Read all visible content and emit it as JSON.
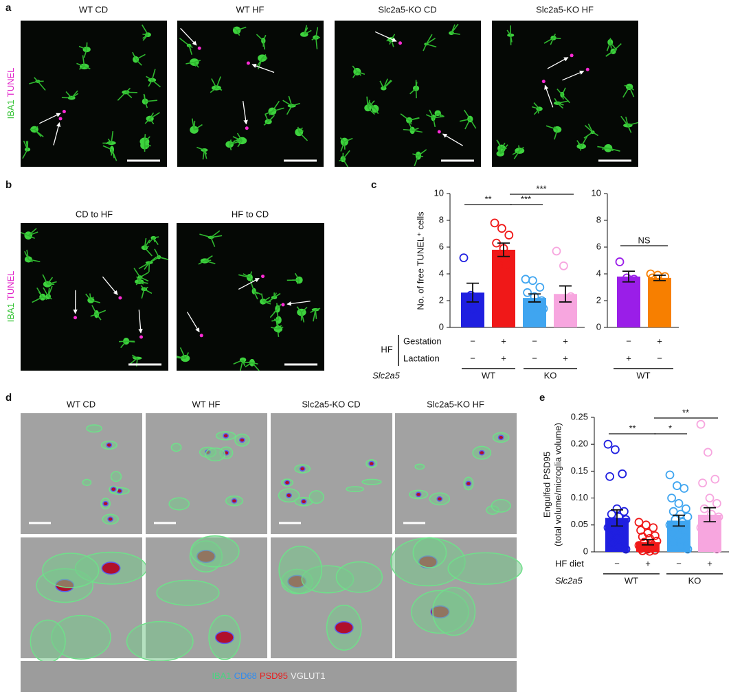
{
  "panel_labels": [
    "a",
    "b",
    "c",
    "d",
    "e"
  ],
  "panel_a": {
    "titles": [
      "WT CD",
      "WT HF",
      "Slc2a5-KO CD",
      "Slc2a5-KO HF"
    ],
    "stain": [
      "IBA1",
      "TUNEL"
    ]
  },
  "panel_b": {
    "titles": [
      "CD to HF",
      "HF to CD"
    ],
    "stain": [
      "IBA1",
      "TUNEL"
    ]
  },
  "panel_d": {
    "titles": [
      "WT CD",
      "WT HF",
      "Slc2a5-KO CD",
      "Slc2a5-KO HF"
    ],
    "legend": [
      "IBA1",
      "CD68",
      "PSD95",
      "VGLUT1"
    ]
  },
  "chart_data": [
    {
      "type": "bar",
      "ylabel": [
        "No. of free TUNEL⁺ cells"
      ],
      "ylim": [
        0,
        10
      ],
      "yticks": [
        0,
        2,
        4,
        6,
        8,
        10
      ],
      "values": [
        2.6,
        5.8,
        2.2,
        2.5
      ],
      "errors": [
        0.7,
        0.5,
        0.3,
        0.6
      ],
      "colors": [
        "#1f1fe0",
        "#f01818",
        "#3fa5f0",
        "#f7a6df"
      ],
      "points": [
        [
          5.2,
          2.4,
          2.2,
          1.6,
          1.4
        ],
        [
          7.8,
          7.4,
          6.9,
          6.3,
          5.9,
          5.2,
          4.8,
          4.6
        ],
        [
          3.6,
          3.5,
          3.0,
          2.6,
          2.3,
          2.0,
          1.7,
          1.5,
          1.4
        ],
        [
          5.7,
          4.6,
          2.3,
          1.6,
          1.3,
          1.0
        ]
      ],
      "annotations": [
        "**",
        "***",
        "***"
      ],
      "group_label": "HF",
      "conditions": [
        {
          "name": "Gestation",
          "marks": [
            "−",
            "+",
            "−",
            "+"
          ]
        },
        {
          "name": "Lactation",
          "marks": [
            "−",
            "+",
            "−",
            "+"
          ]
        }
      ],
      "genotype_label": "Slc2a5",
      "groups": [
        "WT",
        "KO"
      ]
    },
    {
      "type": "bar",
      "ylim": [
        0,
        10
      ],
      "yticks": [
        0,
        2,
        4,
        6,
        8,
        10
      ],
      "values": [
        3.8,
        3.7
      ],
      "errors": [
        0.4,
        0.2
      ],
      "colors": [
        "#9a1ee8",
        "#f77f00"
      ],
      "points": [
        [
          4.9,
          3.7,
          3.6,
          3.2
        ],
        [
          4.0,
          3.9,
          3.8,
          3.7
        ]
      ],
      "annotations": [
        "NS"
      ],
      "conditions": [
        {
          "marks": [
            "−",
            "+"
          ]
        },
        {
          "marks": [
            "+",
            "−"
          ]
        }
      ],
      "groups": [
        "WT"
      ]
    },
    {
      "type": "bar",
      "ylabel": [
        "Engulfed PSD95",
        "(total volume/microglia volume)"
      ],
      "ylim": [
        0,
        0.25
      ],
      "yticks": [
        0,
        0.05,
        {
          "value": 0.1,
          "label": "0.10"
        },
        0.15,
        {
          "value": 0.2,
          "label": "0.20"
        },
        0.25
      ],
      "values": [
        0.063,
        0.018,
        0.058,
        0.069
      ],
      "errors": [
        0.015,
        0.005,
        0.01,
        0.013
      ],
      "colors": [
        "#1f1fe0",
        "#f01818",
        "#3fa5f0",
        "#f7a6df"
      ],
      "points": [
        [
          0.2,
          0.19,
          0.145,
          0.14,
          0.08,
          0.075,
          0.07,
          0.065,
          0.06,
          0.055,
          0.05,
          0.045,
          0.04,
          0.035,
          0.03,
          0.025,
          0.02,
          0.015,
          0.01,
          0.005,
          0.02,
          0.04
        ],
        [
          0.055,
          0.05,
          0.045,
          0.04,
          0.035,
          0.03,
          0.028,
          0.025,
          0.02,
          0.018,
          0.015,
          0.012,
          0.01,
          0.008,
          0.006,
          0.005,
          0.003,
          0.002,
          0.001
        ],
        [
          0.143,
          0.123,
          0.118,
          0.1,
          0.09,
          0.08,
          0.075,
          0.07,
          0.065,
          0.06,
          0.055,
          0.05,
          0.045,
          0.04,
          0.035,
          0.03,
          0.025,
          0.02,
          0.01,
          0.005
        ],
        [
          0.237,
          0.185,
          0.135,
          0.128,
          0.1,
          0.09,
          0.08,
          0.07,
          0.065,
          0.06,
          0.05,
          0.045,
          0.04,
          0.03,
          0.02,
          0.01,
          0.005
        ]
      ],
      "annotations": [
        "**",
        "*",
        "**"
      ],
      "conditions": [
        {
          "name": "HF diet",
          "marks": [
            "−",
            "+",
            "−",
            "+"
          ]
        }
      ],
      "genotype_label": "Slc2a5",
      "groups": [
        "WT",
        "KO"
      ]
    }
  ]
}
